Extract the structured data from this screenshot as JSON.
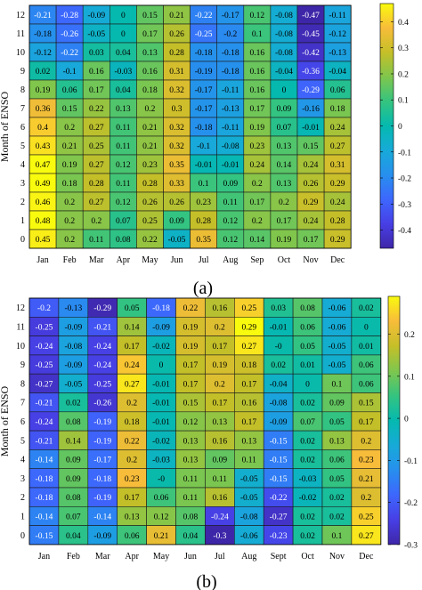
{
  "figure": {
    "captions": [
      "(a)",
      "(b)"
    ]
  },
  "chart_data": [
    {
      "type": "heatmap",
      "panel_label": "(a)",
      "ylabel": "Month of ENSO",
      "x_categories": [
        "Jan",
        "Feb",
        "Mar",
        "Apr",
        "May",
        "Jun",
        "Jul",
        "Aug",
        "Sep",
        "Oct",
        "Nov",
        "Dec"
      ],
      "y_categories": [
        "12",
        "11",
        "10",
        "9",
        "8",
        "7",
        "6",
        "5",
        "4",
        "3",
        "2",
        "1",
        "0"
      ],
      "cell_labels": [
        [
          "-0.21",
          "-0.28",
          "-0.09",
          "0",
          "0.15",
          "0.21",
          "-0.22",
          "-0.17",
          "0.12",
          "-0.08",
          "-0.47",
          "-0.11"
        ],
        [
          "-0.18",
          "-0.26",
          "-0.05",
          "0",
          "0.17",
          "0.26",
          "-0.25",
          "-0.2",
          "0.1",
          "-0.08",
          "-0.45",
          "-0.12"
        ],
        [
          "-0.12",
          "-0.22",
          "0.03",
          "0.04",
          "0.13",
          "0.28",
          "-0.18",
          "-0.18",
          "0.16",
          "-0.08",
          "-0.42",
          "-0.13"
        ],
        [
          "0.02",
          "-0.1",
          "0.16",
          "-0.03",
          "0.16",
          "0.31",
          "-0.19",
          "-0.18",
          "0.16",
          "-0.04",
          "-0.36",
          "-0.04"
        ],
        [
          "0.19",
          "0.06",
          "0.17",
          "0.04",
          "0.18",
          "0.32",
          "-0.17",
          "-0.11",
          "0.16",
          "0",
          "-0.29",
          "0.06"
        ],
        [
          "0.36",
          "0.15",
          "0.22",
          "0.13",
          "0.2",
          "0.3",
          "-0.17",
          "-0.13",
          "0.17",
          "0.09",
          "-0.16",
          "0.18"
        ],
        [
          "0.4",
          "0.2",
          "0.27",
          "0.11",
          "0.21",
          "0.32",
          "-0.18",
          "-0.11",
          "0.19",
          "0.07",
          "-0.01",
          "0.24"
        ],
        [
          "0.43",
          "0.21",
          "0.25",
          "0.11",
          "0.21",
          "0.32",
          "-0.1",
          "-0.08",
          "0.23",
          "0.13",
          "0.15",
          "0.27"
        ],
        [
          "0.47",
          "0.19",
          "0.27",
          "0.12",
          "0.23",
          "0.35",
          "-0.01",
          "-0.01",
          "0.24",
          "0.14",
          "0.24",
          "0.31"
        ],
        [
          "0.49",
          "0.18",
          "0.28",
          "0.11",
          "0.28",
          "0.33",
          "0.1",
          "0.09",
          "0.2",
          "0.13",
          "0.26",
          "0.29"
        ],
        [
          "0.46",
          "0.2",
          "0.27",
          "0.12",
          "0.26",
          "0.26",
          "0.23",
          "0.11",
          "0.17",
          "0.2",
          "0.29",
          "0.24"
        ],
        [
          "0.48",
          "0.2",
          "0.2",
          "0.07",
          "0.25",
          "0.09",
          "0.28",
          "0.12",
          "0.2",
          "0.17",
          "0.24",
          "0.28"
        ],
        [
          "0.45",
          "0.2",
          "0.11",
          "0.08",
          "0.22",
          "-0.05",
          "0.35",
          "0.12",
          "0.14",
          "0.19",
          "0.17",
          "0.29"
        ]
      ],
      "colorbar": {
        "range": [
          -0.47,
          0.47
        ],
        "ticks": [
          "0.4",
          "0.3",
          "0.2",
          "0.1",
          "0",
          "-0.1",
          "-0.2",
          "-0.3",
          "-0.4"
        ],
        "tick_values": [
          0.4,
          0.3,
          0.2,
          0.1,
          0,
          -0.1,
          -0.2,
          -0.3,
          -0.4
        ]
      },
      "colormap": "parula"
    },
    {
      "type": "heatmap",
      "panel_label": "(b)",
      "ylabel": "Month of ENSO",
      "x_categories": [
        "Jan",
        "Feb",
        "Mar",
        "Apr",
        "May",
        "Jun",
        "Jul",
        "Aug",
        "Sept",
        "Oct",
        "Nov",
        "Dec"
      ],
      "y_categories": [
        "12",
        "11",
        "10",
        "9",
        "8",
        "7",
        "6",
        "5",
        "4",
        "3",
        "2",
        "1",
        "0"
      ],
      "cell_labels": [
        [
          "-0.2",
          "-0.13",
          "-0.29",
          "0.05",
          "-0.18",
          "0.22",
          "0.16",
          "0.25",
          "0.03",
          "0.08",
          "-0.06",
          "0.02"
        ],
        [
          "-0.25",
          "-0.09",
          "-0.21",
          "0.14",
          "-0.09",
          "0.19",
          "0.2",
          "0.29",
          "-0.01",
          "0.06",
          "-0.06",
          "0"
        ],
        [
          "-0.24",
          "-0.08",
          "-0.24",
          "0.17",
          "-0.02",
          "0.19",
          "0.17",
          "0.27",
          "-0",
          "0.05",
          "-0.05",
          "0.01"
        ],
        [
          "-0.25",
          "-0.09",
          "-0.24",
          "0.24",
          "0",
          "0.17",
          "0.19",
          "0.18",
          "0.02",
          "0.01",
          "-0.05",
          "0.06"
        ],
        [
          "-0.27",
          "-0.05",
          "-0.25",
          "0.27",
          "-0.01",
          "0.17",
          "0.2",
          "0.17",
          "-0.04",
          "0",
          "0.1",
          "0.06"
        ],
        [
          "-0.21",
          "0.02",
          "-0.26",
          "0.2",
          "-0.01",
          "0.15",
          "0.17",
          "0.16",
          "-0.08",
          "0.02",
          "0.09",
          "0.15"
        ],
        [
          "-0.24",
          "0.08",
          "-0.19",
          "0.18",
          "-0.01",
          "0.12",
          "0.13",
          "0.17",
          "-0.09",
          "0.07",
          "0.05",
          "0.17"
        ],
        [
          "-0.21",
          "0.14",
          "-0.19",
          "0.22",
          "-0.02",
          "0.13",
          "0.16",
          "0.13",
          "-0.15",
          "0.02",
          "0.13",
          "0.2"
        ],
        [
          "-0.14",
          "0.09",
          "-0.17",
          "0.2",
          "-0.03",
          "0.13",
          "0.09",
          "0.11",
          "-0.15",
          "0.02",
          "0.06",
          "0.23"
        ],
        [
          "-0.18",
          "0.09",
          "-0.18",
          "0.23",
          "-0",
          "0.11",
          "0.11",
          "-0.05",
          "-0.15",
          "-0.03",
          "0.05",
          "0.21"
        ],
        [
          "-0.18",
          "0.08",
          "-0.19",
          "0.17",
          "0.06",
          "0.11",
          "0.16",
          "-0.05",
          "-0.22",
          "-0.02",
          "0.02",
          "0.2"
        ],
        [
          "-0.14",
          "0.07",
          "-0.14",
          "0.13",
          "0.12",
          "0.08",
          "-0.24",
          "-0.08",
          "-0.27",
          "0.02",
          "0.02",
          "0.25"
        ],
        [
          "-0.15",
          "0.04",
          "-0.09",
          "0.06",
          "0.21",
          "0.04",
          "-0.3",
          "-0.06",
          "-0.23",
          "0.02",
          "0.1",
          "0.27"
        ]
      ],
      "colorbar": {
        "range": [
          -0.3,
          0.29
        ],
        "ticks": [
          "0.2",
          "0.1",
          "0",
          "-0.1",
          "-0.2",
          "-0.3"
        ],
        "tick_values": [
          0.2,
          0.1,
          0,
          -0.1,
          -0.2,
          -0.3
        ]
      },
      "colormap": "parula"
    }
  ]
}
